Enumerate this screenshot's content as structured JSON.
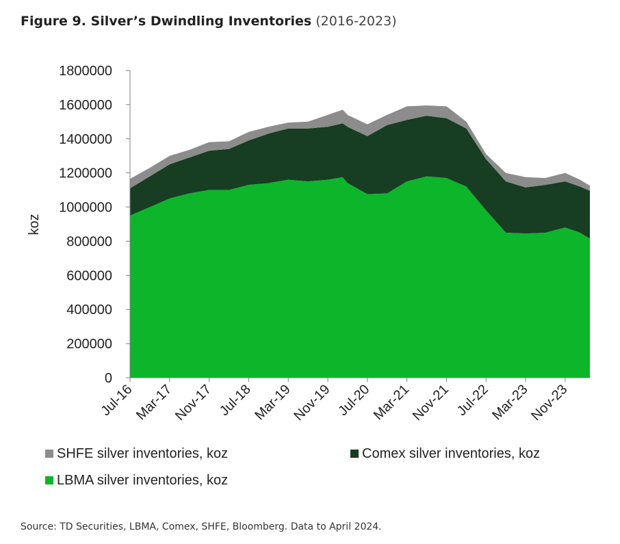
{
  "title": {
    "main": "Figure 9. Silver’s Dwindling Inventories",
    "sub": "(2016-2023)"
  },
  "source": "Source: TD Securities, LBMA, Comex, SHFE, Bloomberg. Data to April 2024.",
  "chart_data": {
    "type": "area",
    "stacked": true,
    "ylabel": "koz",
    "ylim": [
      0,
      1800000
    ],
    "yticks": [
      0,
      200000,
      400000,
      600000,
      800000,
      1000000,
      1200000,
      1400000,
      1600000,
      1800000
    ],
    "xticks": [
      "Jul-16",
      "Mar-17",
      "Nov-17",
      "Jul-18",
      "Mar-19",
      "Nov-19",
      "Jul-20",
      "Mar-21",
      "Nov-21",
      "Jul-22",
      "Mar-23",
      "Nov-23"
    ],
    "x": [
      "Jul-16",
      "Nov-16",
      "Mar-17",
      "Jul-17",
      "Nov-17",
      "Mar-18",
      "Jul-18",
      "Nov-18",
      "Mar-19",
      "Jul-19",
      "Nov-19",
      "Feb-20",
      "Mar-20",
      "Jul-20",
      "Nov-20",
      "Mar-21",
      "Jul-21",
      "Nov-21",
      "Mar-22",
      "Jul-22",
      "Nov-22",
      "Mar-23",
      "Jul-23",
      "Nov-23",
      "Feb-24",
      "Apr-24"
    ],
    "series": [
      {
        "name": "LBMA silver inventories, koz",
        "color": "#0db52b",
        "values": [
          950000,
          1000000,
          1050000,
          1080000,
          1100000,
          1100000,
          1130000,
          1140000,
          1160000,
          1150000,
          1160000,
          1175000,
          1140000,
          1075000,
          1080000,
          1150000,
          1180000,
          1170000,
          1120000,
          980000,
          850000,
          845000,
          850000,
          880000,
          850000,
          815000
        ]
      },
      {
        "name": "Comex silver inventories, koz",
        "color": "#173d22",
        "values": [
          160000,
          180000,
          200000,
          210000,
          230000,
          240000,
          260000,
          290000,
          300000,
          310000,
          310000,
          315000,
          330000,
          340000,
          400000,
          360000,
          355000,
          350000,
          340000,
          300000,
          300000,
          270000,
          280000,
          270000,
          270000,
          280000
        ]
      },
      {
        "name": "SHFE silver inventories, koz",
        "color": "#8c8c8c",
        "values": [
          55000,
          50000,
          50000,
          45000,
          50000,
          45000,
          50000,
          40000,
          35000,
          40000,
          70000,
          80000,
          70000,
          70000,
          60000,
          80000,
          60000,
          70000,
          40000,
          30000,
          50000,
          60000,
          40000,
          50000,
          40000,
          30000
        ]
      }
    ],
    "legend": {
      "placement": "bottom",
      "order": [
        "SHFE silver inventories, koz",
        "Comex silver inventories, koz",
        "LBMA silver inventories, koz"
      ]
    },
    "grid": false
  }
}
